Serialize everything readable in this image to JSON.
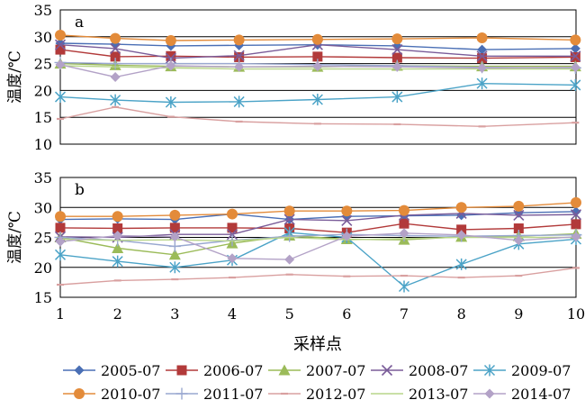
{
  "figure": {
    "xlabel": "采样点",
    "legend": [
      {
        "name": "2005-07",
        "color": "#4a6fb5",
        "marker": "diamond"
      },
      {
        "name": "2006-07",
        "color": "#b23a3a",
        "marker": "square"
      },
      {
        "name": "2007-07",
        "color": "#9bbb59",
        "marker": "triangle"
      },
      {
        "name": "2008-07",
        "color": "#7a5c99",
        "marker": "x"
      },
      {
        "name": "2009-07",
        "color": "#4ba3c7",
        "marker": "asterisk"
      },
      {
        "name": "2010-07",
        "color": "#e38b3a",
        "marker": "circle"
      },
      {
        "name": "2011-07",
        "color": "#99a8d0",
        "marker": "plus"
      },
      {
        "name": "2012-07",
        "color": "#d9a0a0",
        "marker": "dash"
      },
      {
        "name": "2013-07",
        "color": "#b8d58a",
        "marker": "none"
      },
      {
        "name": "2014-07",
        "color": "#b3a2c7",
        "marker": "diamond"
      }
    ]
  },
  "chart_data": [
    {
      "type": "line",
      "panel_label": "a",
      "ylabel": "温度/℃",
      "ylim": [
        10,
        35
      ],
      "yticks": [
        10,
        15,
        20,
        25,
        30,
        35
      ],
      "x": [
        1,
        1.96,
        2.93,
        4.12,
        5.49,
        6.88,
        8.36,
        9.99
      ],
      "series": [
        {
          "name": "2005-07",
          "values": [
            28.8,
            28.6,
            28.3,
            28.4,
            28.5,
            28.3,
            27.6,
            27.8
          ]
        },
        {
          "name": "2006-07",
          "values": [
            27.6,
            26.3,
            26.4,
            26.2,
            26.3,
            26.1,
            26.0,
            26.2
          ]
        },
        {
          "name": "2007-07",
          "values": [
            25.0,
            24.7,
            24.5,
            24.4,
            24.4,
            24.6,
            24.5,
            24.5
          ]
        },
        {
          "name": "2008-07",
          "values": [
            28.5,
            27.8,
            26.0,
            26.5,
            28.5,
            27.6,
            26.4,
            26.4
          ]
        },
        {
          "name": "2009-07",
          "values": [
            18.8,
            18.2,
            17.8,
            17.9,
            18.3,
            18.8,
            21.3,
            21.0
          ]
        },
        {
          "name": "2010-07",
          "values": [
            30.3,
            29.7,
            29.3,
            29.4,
            29.5,
            29.6,
            29.8,
            29.4
          ]
        },
        {
          "name": "2011-07",
          "values": [
            25.2,
            25.0,
            25.0,
            25.0,
            24.8,
            24.6,
            24.3,
            24.2
          ]
        },
        {
          "name": "2012-07",
          "values": [
            14.7,
            16.9,
            15.1,
            14.2,
            13.8,
            13.7,
            13.3,
            14.0
          ]
        },
        {
          "name": "2013-07",
          "values": [
            24.6,
            24.4,
            24.2,
            24.0,
            24.0,
            24.0,
            24.0,
            24.0
          ]
        },
        {
          "name": "2014-07",
          "values": [
            24.8,
            22.5,
            24.6,
            24.4,
            24.5,
            24.4,
            24.2,
            24.3
          ]
        }
      ]
    },
    {
      "type": "line",
      "panel_label": "b",
      "ylabel": "温度/℃",
      "ylim": [
        15,
        35
      ],
      "yticks": [
        15,
        20,
        25,
        30,
        35
      ],
      "xlim": [
        1,
        10
      ],
      "xticks": [
        1,
        2,
        3,
        4,
        5,
        6,
        7,
        8,
        9,
        10
      ],
      "x": [
        1,
        2,
        3,
        4,
        5,
        6,
        7,
        8,
        9,
        10
      ],
      "series": [
        {
          "name": "2005-07",
          "values": [
            28.0,
            28.1,
            28.0,
            28.9,
            28.0,
            28.5,
            28.6,
            28.7,
            29.1,
            29.3
          ]
        },
        {
          "name": "2006-07",
          "values": [
            26.6,
            26.5,
            26.6,
            26.6,
            26.5,
            25.8,
            27.3,
            26.3,
            26.5,
            27.2
          ]
        },
        {
          "name": "2007-07",
          "values": [
            25.0,
            23.2,
            22.1,
            24.0,
            25.3,
            24.7,
            24.6,
            25.1,
            25.2,
            25.6
          ]
        },
        {
          "name": "2008-07",
          "values": [
            25.1,
            25.0,
            25.5,
            25.5,
            28.0,
            27.8,
            28.7,
            29.0,
            28.7,
            28.8
          ]
        },
        {
          "name": "2009-07",
          "values": [
            22.1,
            21.0,
            20.0,
            21.2,
            25.8,
            25.0,
            16.8,
            20.5,
            23.9,
            24.7
          ]
        },
        {
          "name": "2010-07",
          "values": [
            28.5,
            28.5,
            28.7,
            28.9,
            29.4,
            29.4,
            29.5,
            30.0,
            30.2,
            30.8
          ]
        },
        {
          "name": "2011-07",
          "values": [
            25.0,
            24.5,
            23.5,
            24.5,
            25.2,
            25.5,
            25.3,
            25.2,
            25.3,
            25.4
          ]
        },
        {
          "name": "2012-07",
          "values": [
            17.1,
            17.8,
            18.0,
            18.3,
            18.8,
            18.5,
            18.6,
            18.3,
            18.6,
            19.9
          ]
        },
        {
          "name": "2013-07",
          "values": [
            24.7,
            24.5,
            24.6,
            24.4,
            25.0,
            24.6,
            24.8,
            25.0,
            25.0,
            25.0
          ]
        },
        {
          "name": "2014-07",
          "values": [
            24.3,
            25.3,
            25.1,
            21.5,
            21.3,
            25.2,
            25.7,
            25.4,
            24.5,
            25.1
          ]
        }
      ]
    }
  ]
}
